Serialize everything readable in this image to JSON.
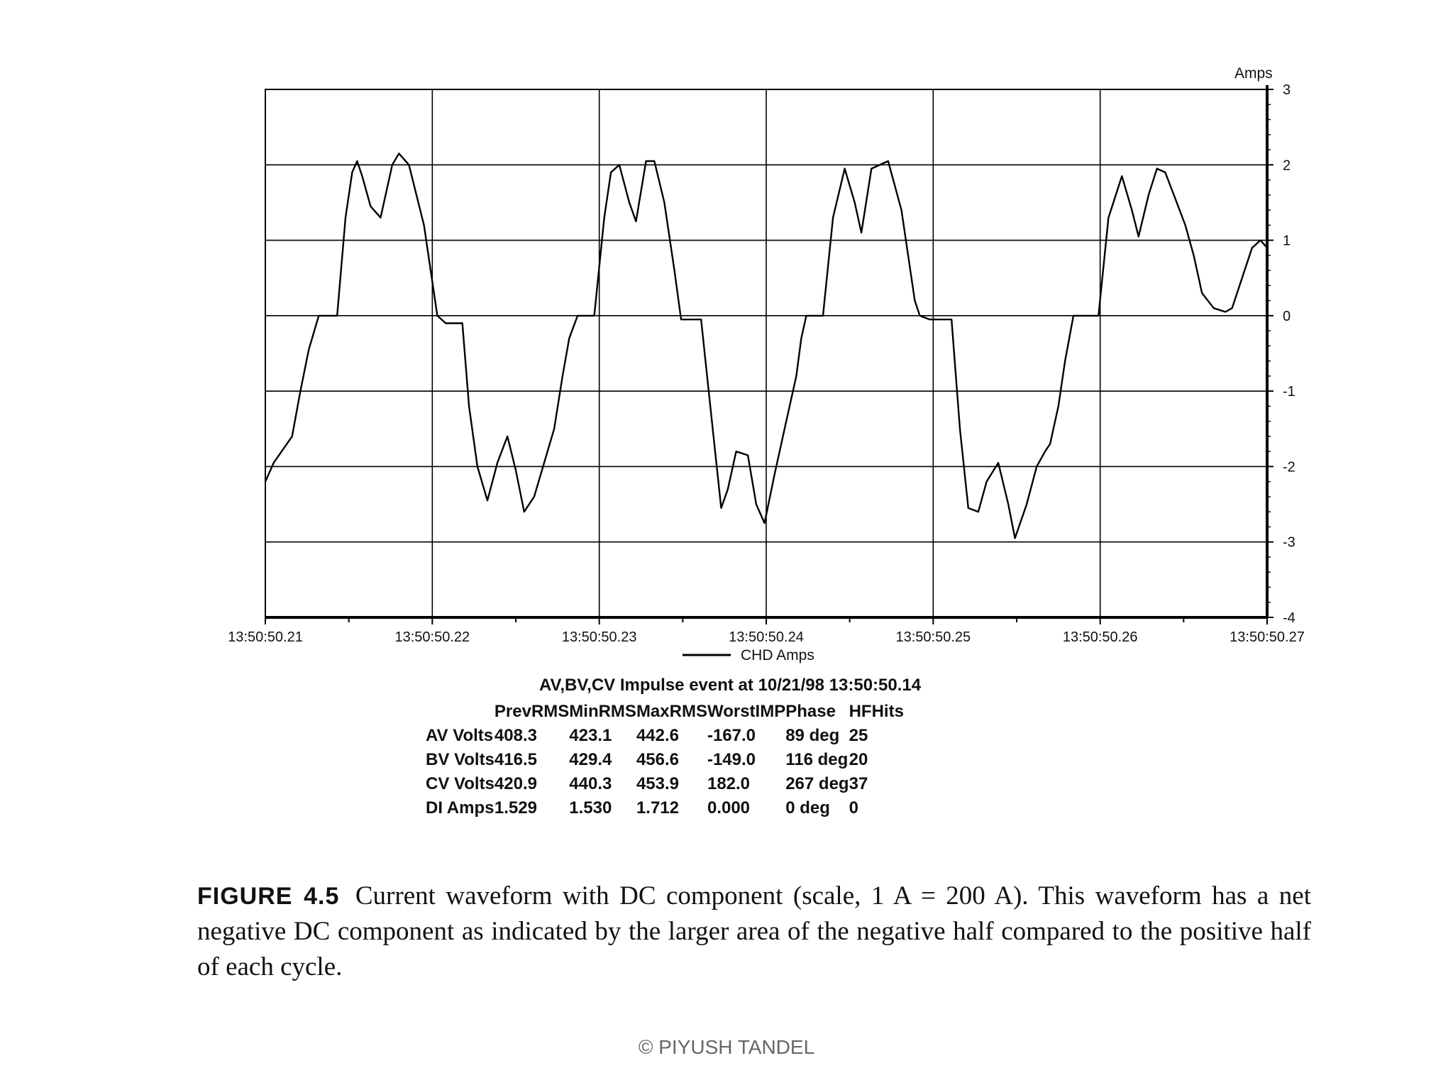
{
  "chart_data": {
    "type": "line",
    "y_unit_label": "Amps",
    "ylim": [
      -4,
      3
    ],
    "y_ticks": [
      "3",
      "2",
      "1",
      "0",
      "-1",
      "-2",
      "-3",
      "-4"
    ],
    "y_tick_values": [
      3,
      2,
      1,
      0,
      -1,
      -2,
      -3,
      -4
    ],
    "x_ticks": [
      "13:50:50.21",
      "13:50:50.22",
      "13:50:50.23",
      "13:50:50.24",
      "13:50:50.25",
      "13:50:50.26",
      "13:50:50.27"
    ],
    "grid": true,
    "legend_position": "bottom",
    "series": [
      {
        "name": "CHD Amps",
        "color": "#000000",
        "x": [
          0,
          0.5,
          1.6,
          2.1,
          2.6,
          3.2,
          3.8,
          4.3,
          4.8,
          5.2,
          5.5,
          5.8,
          6.3,
          6.9,
          7.6,
          8.0,
          8.6,
          9.5,
          10.3,
          10.8,
          11.2,
          11.8,
          12.2,
          12.7,
          13.3,
          13.9,
          14.5,
          15.0,
          15.5,
          16.1,
          16.7,
          17.3,
          17.8,
          18.2,
          18.7,
          19.1,
          19.7,
          20.3,
          20.7,
          21.2,
          21.8,
          22.2,
          22.8,
          23.3,
          23.9,
          24.5,
          24.9,
          25.5,
          26.1,
          26.7,
          27.3,
          27.7,
          28.2,
          28.9,
          29.4,
          29.9,
          30.5,
          31.2,
          31.8,
          32.1,
          32.4,
          32.8,
          33.4,
          34.0,
          34.7,
          35.3,
          35.7,
          36.3,
          37.3,
          38.1,
          38.9,
          39.2,
          39.8,
          40.5,
          41.1,
          41.6,
          42.1,
          42.7,
          43.2,
          43.9,
          44.5,
          44.9,
          45.6,
          46.2,
          46.7,
          47.0,
          47.5,
          47.9,
          48.4,
          49.2,
          49.9,
          50.5,
          51.3,
          51.9,
          52.3,
          52.9,
          53.4,
          53.9,
          54.5,
          55.1,
          55.6,
          56.1,
          56.8,
          57.5,
          57.9,
          58.5,
          59.1,
          59.6,
          60.0
        ],
        "y": [
          -2.2,
          -1.95,
          -1.6,
          -1.0,
          -0.45,
          0.0,
          0.0,
          0.0,
          1.3,
          1.9,
          2.05,
          1.85,
          1.45,
          1.3,
          2.0,
          2.15,
          2.0,
          1.2,
          0.0,
          -0.1,
          -0.1,
          -0.1,
          -1.2,
          -2.0,
          -2.45,
          -1.95,
          -1.6,
          -2.05,
          -2.6,
          -2.4,
          -1.95,
          -1.5,
          -0.8,
          -0.3,
          0.0,
          0.0,
          0.0,
          1.3,
          1.9,
          2.0,
          1.5,
          1.25,
          2.05,
          2.05,
          1.5,
          0.6,
          -0.05,
          -0.05,
          -0.05,
          -1.3,
          -2.55,
          -2.3,
          -1.8,
          -1.85,
          -2.5,
          -2.75,
          -2.1,
          -1.4,
          -0.8,
          -0.3,
          0.0,
          0.0,
          0.0,
          1.3,
          1.95,
          1.5,
          1.1,
          1.95,
          2.05,
          1.4,
          0.2,
          0.0,
          -0.05,
          -0.05,
          -0.05,
          -1.5,
          -2.55,
          -2.6,
          -2.2,
          -1.95,
          -2.5,
          -2.95,
          -2.5,
          -2.0,
          -1.8,
          -1.7,
          -1.2,
          -0.6,
          0.0,
          0.0,
          0.0,
          1.3,
          1.85,
          1.4,
          1.05,
          1.6,
          1.95,
          1.9,
          1.55,
          1.2,
          0.8,
          0.3,
          0.1,
          0.05,
          0.1,
          0.5,
          0.9,
          1.0,
          0.9
        ]
      }
    ]
  },
  "summary": {
    "title": "AV,BV,CV Impulse event at 10/21/98 13:50:50.14",
    "headers": [
      "",
      "PrevRMS",
      "MinRMS",
      "MaxRMS",
      "WorstIMP",
      "Phase",
      "HFHits"
    ],
    "rows": [
      [
        "AV Volts",
        "408.3",
        "423.1",
        "442.6",
        "-167.0",
        "89 deg",
        "25"
      ],
      [
        "BV Volts",
        "416.5",
        "429.4",
        "456.6",
        "-149.0",
        "116 deg",
        "20"
      ],
      [
        "CV Volts",
        "420.9",
        "440.3",
        "453.9",
        "182.0",
        "267 deg",
        "37"
      ],
      [
        "DI Amps",
        "1.529",
        "1.530",
        "1.712",
        "0.000",
        "0 deg",
        "0"
      ]
    ]
  },
  "caption": {
    "figure_number": "FIGURE 4.5",
    "text": "Current waveform with DC component (scale, 1 A = 200 A). This waveform has a net negative DC component as indicated by the larger area of the negative half compared to the positive half of each cycle."
  },
  "footer": {
    "text": "© PIYUSH TANDEL"
  }
}
